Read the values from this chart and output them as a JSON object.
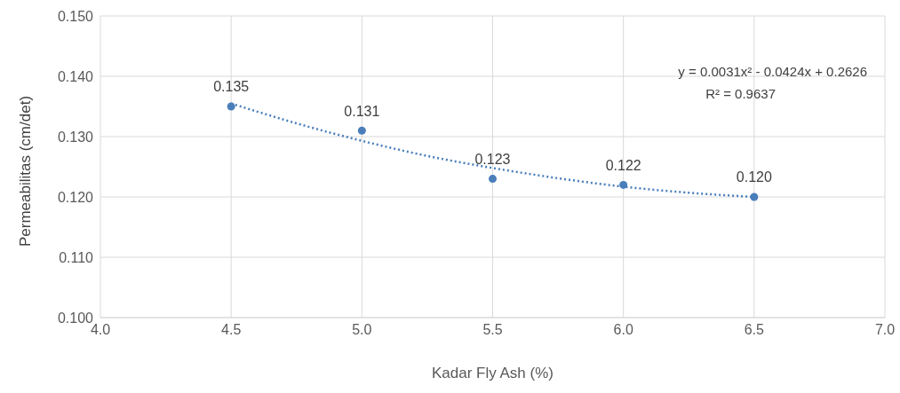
{
  "chart_data": {
    "type": "scatter",
    "xlabel": "Kadar Fly Ash (%)",
    "ylabel": "Permeabilitas (cm/det)",
    "x": [
      4.5,
      5.0,
      5.5,
      6.0,
      6.5
    ],
    "series": [
      {
        "color": "#4a7ebb",
        "values": [
          0.135,
          0.131,
          0.123,
          0.122,
          0.12
        ],
        "value_labels": [
          "0.135",
          "0.131",
          "0.123",
          "0.122",
          "0.120"
        ],
        "marker": "circle"
      },
      {
        "type": "line",
        "color": "#4a7ebb",
        "x": [
          4.5,
          4.75,
          5.0,
          5.25,
          5.5,
          5.75,
          6.0,
          6.25,
          6.5
        ],
        "values": [
          0.1355,
          0.1322,
          0.1293,
          0.1268,
          0.1248,
          0.1231,
          0.1217,
          0.1207,
          0.12
        ],
        "line_style": "dotted",
        "marker": "none"
      }
    ],
    "annotations": [
      "y = 0.0031x² - 0.0424x + 0.2626",
      "R² = 0.9637"
    ],
    "xlim": [
      4.0,
      7.0
    ],
    "xticks": [
      {
        "value": 4.0,
        "label": "4.0"
      },
      {
        "value": 4.5,
        "label": "4.5"
      },
      {
        "value": 5.0,
        "label": "5.0"
      },
      {
        "value": 5.5,
        "label": "5.5"
      },
      {
        "value": 6.0,
        "label": "6.0"
      },
      {
        "value": 6.5,
        "label": "6.5"
      },
      {
        "value": 7.0,
        "label": "7.0"
      }
    ],
    "ylim": [
      0.1,
      0.15
    ],
    "yticks": [
      {
        "value": 0.1,
        "label": "0.100"
      },
      {
        "value": 0.11,
        "label": "0.110"
      },
      {
        "value": 0.12,
        "label": "0.120"
      },
      {
        "value": 0.13,
        "label": "0.130"
      },
      {
        "value": 0.14,
        "label": "0.140"
      },
      {
        "value": 0.15,
        "label": "0.150"
      }
    ],
    "grid": true
  }
}
